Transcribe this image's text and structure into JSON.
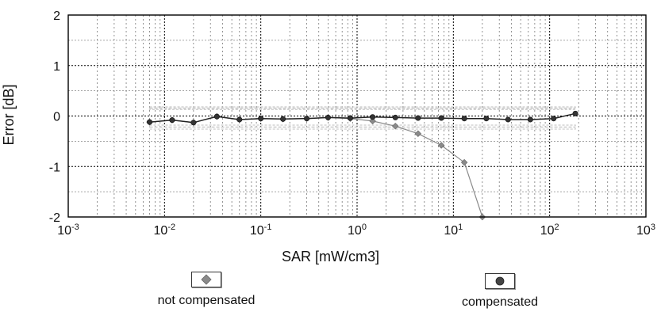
{
  "chart_data": {
    "type": "line",
    "xscale": "log",
    "xlabel": "SAR [mW/cm3]",
    "ylabel": "Error [dB]",
    "xlim": [
      0.001,
      1000
    ],
    "ylim": [
      -2,
      2
    ],
    "xticks": [
      {
        "base": "10",
        "exp": "-3"
      },
      {
        "base": "10",
        "exp": "-2"
      },
      {
        "base": "10",
        "exp": "-1"
      },
      {
        "base": "10",
        "exp": "0"
      },
      {
        "base": "10",
        "exp": "1"
      },
      {
        "base": "10",
        "exp": "2"
      },
      {
        "base": "10",
        "exp": "3"
      }
    ],
    "yticks": [
      "2",
      "1",
      "0",
      "-1",
      "-2"
    ],
    "grid": true,
    "legend_position": "bottom",
    "series": [
      {
        "name": "not compensated",
        "color": "#8a8a8a",
        "marker": "diamond",
        "x": [
          0.007,
          0.012,
          0.02,
          0.035,
          0.06,
          0.1,
          0.17,
          0.3,
          0.5,
          0.85,
          1.45,
          2.5,
          4.3,
          7.5,
          13,
          20
        ],
        "y": [
          -0.12,
          -0.08,
          -0.13,
          -0.01,
          -0.07,
          -0.05,
          -0.06,
          -0.05,
          -0.03,
          -0.05,
          -0.1,
          -0.2,
          -0.35,
          -0.58,
          -0.92,
          -2.0
        ]
      },
      {
        "name": "compensated",
        "color": "#222222",
        "marker": "circle",
        "x": [
          0.007,
          0.012,
          0.02,
          0.035,
          0.06,
          0.1,
          0.17,
          0.3,
          0.5,
          0.85,
          1.45,
          2.5,
          4.3,
          7.5,
          13,
          22,
          37,
          63,
          110,
          185
        ],
        "y": [
          -0.12,
          -0.08,
          -0.13,
          -0.01,
          -0.07,
          -0.05,
          -0.06,
          -0.05,
          -0.03,
          -0.04,
          -0.02,
          -0.03,
          -0.04,
          -0.04,
          -0.05,
          -0.05,
          -0.07,
          -0.07,
          -0.05,
          0.05
        ]
      }
    ],
    "bands": [
      {
        "x": [
          0.007,
          185
        ],
        "upper": 0.18,
        "lower": 0.13,
        "color": "#c9c9c9"
      },
      {
        "x": [
          0.007,
          185
        ],
        "upper": -0.18,
        "lower": -0.26,
        "color": "#c9c9c9"
      }
    ]
  },
  "legend": {
    "not_compensated": "not compensated",
    "compensated": "compensated"
  }
}
